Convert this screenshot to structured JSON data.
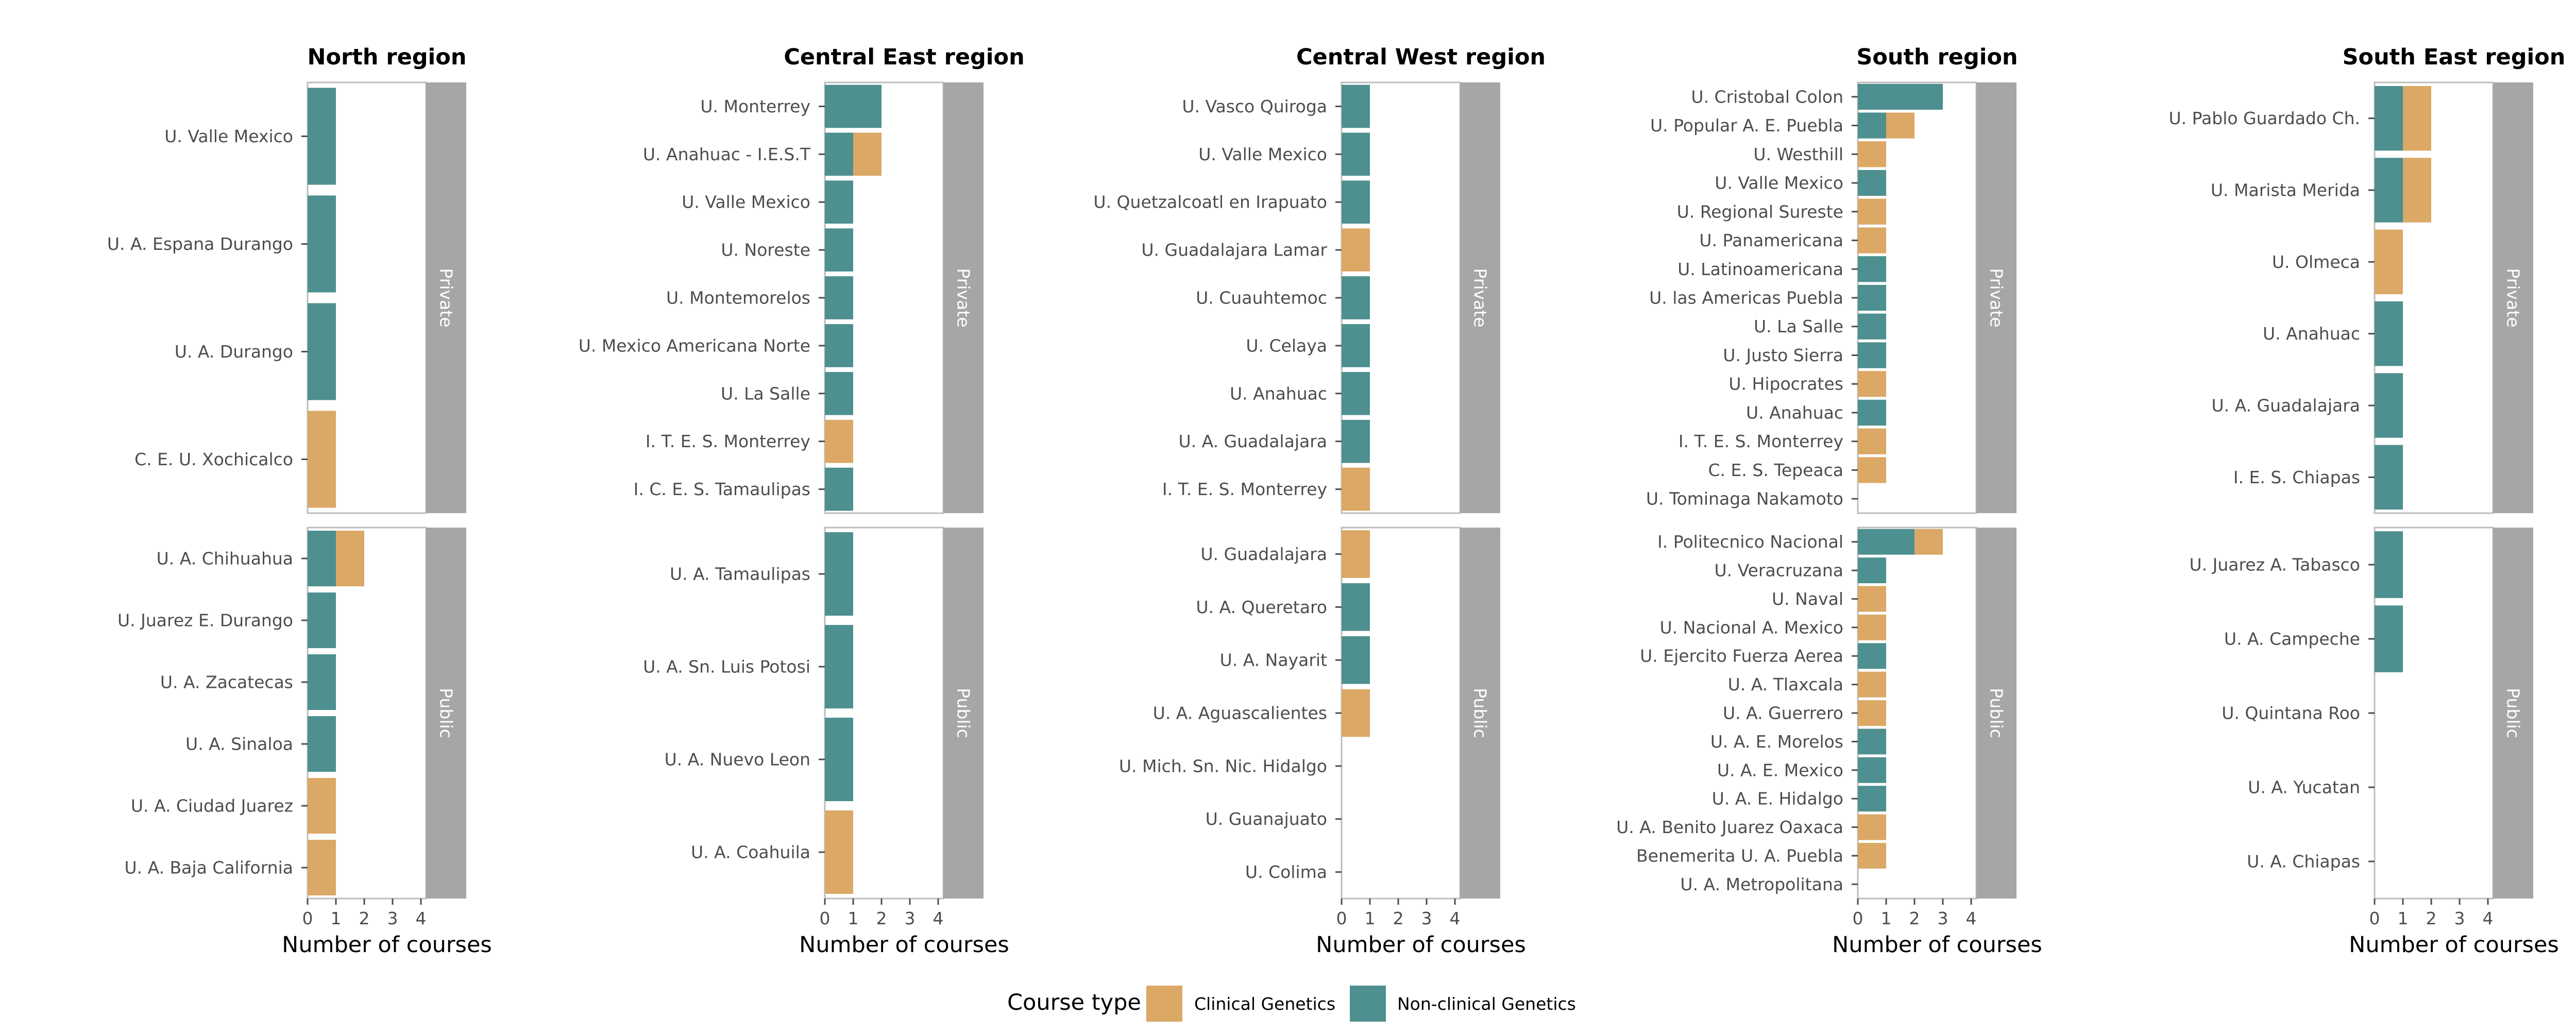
{
  "chart_data": {
    "type": "bar",
    "orientation": "horizontal",
    "stacked": true,
    "xlabel": "Number of courses",
    "xlim": [
      0,
      4
    ],
    "xticks": [
      "0",
      "1",
      "2",
      "3",
      "4"
    ],
    "legend": {
      "title": "Course type",
      "placement": "bottom",
      "entries": [
        "Clinical Genetics",
        "Non-clinical Genetics"
      ]
    },
    "colors": {
      "Clinical Genetics": "#DBA866",
      "Non-clinical Genetics": "#4E8F8F",
      "strip": "#A6A6A6"
    },
    "regions": [
      {
        "title": "North region",
        "facets": [
          {
            "label": "Private",
            "categories": [
              "U. Valle Mexico",
              "U. A. Espana Durango",
              "U. A. Durango",
              "C. E. U. Xochicalco"
            ],
            "series": [
              {
                "name": "Non-clinical Genetics",
                "values": [
                  1,
                  1,
                  1,
                  0
                ]
              },
              {
                "name": "Clinical Genetics",
                "values": [
                  0,
                  0,
                  0,
                  1
                ]
              }
            ]
          },
          {
            "label": "Public",
            "categories": [
              "U. A. Chihuahua",
              "U. Juarez E. Durango",
              "U. A. Zacatecas",
              "U. A. Sinaloa",
              "U. A. Ciudad Juarez",
              "U. A. Baja California"
            ],
            "series": [
              {
                "name": "Non-clinical Genetics",
                "values": [
                  1,
                  1,
                  1,
                  1,
                  0,
                  0
                ]
              },
              {
                "name": "Clinical Genetics",
                "values": [
                  1,
                  0,
                  0,
                  0,
                  1,
                  1
                ]
              }
            ]
          }
        ]
      },
      {
        "title": "Central East region",
        "facets": [
          {
            "label": "Private",
            "categories": [
              "U. Monterrey",
              "U. Anahuac - I.E.S.T",
              "U. Valle Mexico",
              "U. Noreste",
              "U. Montemorelos",
              "U. Mexico Americana Norte",
              "U. La Salle",
              "I. T. E. S. Monterrey",
              "I. C. E. S. Tamaulipas"
            ],
            "series": [
              {
                "name": "Non-clinical Genetics",
                "values": [
                  2,
                  1,
                  1,
                  1,
                  1,
                  1,
                  1,
                  0,
                  1
                ]
              },
              {
                "name": "Clinical Genetics",
                "values": [
                  0,
                  1,
                  0,
                  0,
                  0,
                  0,
                  0,
                  1,
                  0
                ]
              }
            ]
          },
          {
            "label": "Public",
            "categories": [
              "U. A. Tamaulipas",
              "U. A. Sn. Luis Potosi",
              "U. A. Nuevo Leon",
              "U. A. Coahuila"
            ],
            "series": [
              {
                "name": "Non-clinical Genetics",
                "values": [
                  1,
                  1,
                  1,
                  0
                ]
              },
              {
                "name": "Clinical Genetics",
                "values": [
                  0,
                  0,
                  0,
                  1
                ]
              }
            ]
          }
        ]
      },
      {
        "title": "Central West region",
        "facets": [
          {
            "label": "Private",
            "categories": [
              "U. Vasco Quiroga",
              "U. Valle Mexico",
              "U. Quetzalcoatl en Irapuato",
              "U. Guadalajara Lamar",
              "U. Cuauhtemoc",
              "U. Celaya",
              "U. Anahuac",
              "U. A. Guadalajara",
              "I. T. E. S. Monterrey"
            ],
            "series": [
              {
                "name": "Non-clinical Genetics",
                "values": [
                  1,
                  1,
                  1,
                  0,
                  1,
                  1,
                  1,
                  1,
                  0
                ]
              },
              {
                "name": "Clinical Genetics",
                "values": [
                  0,
                  0,
                  0,
                  1,
                  0,
                  0,
                  0,
                  0,
                  1
                ]
              }
            ]
          },
          {
            "label": "Public",
            "categories": [
              "U. Guadalajara",
              "U. A. Queretaro",
              "U. A. Nayarit",
              "U. A. Aguascalientes",
              "U. Mich. Sn. Nic. Hidalgo",
              "U. Guanajuato",
              "U. Colima"
            ],
            "series": [
              {
                "name": "Non-clinical Genetics",
                "values": [
                  0,
                  1,
                  1,
                  0,
                  0,
                  0,
                  0
                ]
              },
              {
                "name": "Clinical Genetics",
                "values": [
                  1,
                  0,
                  0,
                  1,
                  0,
                  0,
                  0
                ]
              }
            ]
          }
        ]
      },
      {
        "title": "South region",
        "facets": [
          {
            "label": "Private",
            "categories": [
              "U. Cristobal Colon",
              "U. Popular A. E. Puebla",
              "U. Westhill",
              "U. Valle Mexico",
              "U. Regional Sureste",
              "U. Panamericana",
              "U. Latinoamericana",
              "U. las Americas Puebla",
              "U. La Salle",
              "U. Justo Sierra",
              "U. Hipocrates",
              "U. Anahuac",
              "I. T. E. S. Monterrey",
              "C. E. S. Tepeaca",
              "U. Tominaga Nakamoto"
            ],
            "series": [
              {
                "name": "Non-clinical Genetics",
                "values": [
                  3,
                  1,
                  0,
                  1,
                  0,
                  0,
                  1,
                  1,
                  1,
                  1,
                  0,
                  1,
                  0,
                  0,
                  0
                ]
              },
              {
                "name": "Clinical Genetics",
                "values": [
                  0,
                  1,
                  1,
                  0,
                  1,
                  1,
                  0,
                  0,
                  0,
                  0,
                  1,
                  0,
                  1,
                  1,
                  0
                ]
              }
            ]
          },
          {
            "label": "Public",
            "categories": [
              "I. Politecnico Nacional",
              "U. Veracruzana",
              "U. Naval",
              "U. Nacional A. Mexico",
              "U. Ejercito Fuerza Aerea",
              "U. A. Tlaxcala",
              "U. A. Guerrero",
              "U. A. E. Morelos",
              "U. A. E. Mexico",
              "U. A. E. Hidalgo",
              "U. A. Benito Juarez Oaxaca",
              "Benemerita U. A. Puebla",
              "U. A. Metropolitana"
            ],
            "series": [
              {
                "name": "Non-clinical Genetics",
                "values": [
                  2,
                  1,
                  0,
                  0,
                  1,
                  0,
                  0,
                  1,
                  1,
                  1,
                  0,
                  0,
                  0
                ]
              },
              {
                "name": "Clinical Genetics",
                "values": [
                  1,
                  0,
                  1,
                  1,
                  0,
                  1,
                  1,
                  0,
                  0,
                  0,
                  1,
                  1,
                  0
                ]
              }
            ]
          }
        ]
      },
      {
        "title": "South East region",
        "facets": [
          {
            "label": "Private",
            "categories": [
              "U. Pablo Guardado Ch.",
              "U. Marista Merida",
              "U. Olmeca",
              "U. Anahuac",
              "U. A. Guadalajara",
              "I. E. S. Chiapas"
            ],
            "series": [
              {
                "name": "Non-clinical Genetics",
                "values": [
                  1,
                  1,
                  0,
                  1,
                  1,
                  1
                ]
              },
              {
                "name": "Clinical Genetics",
                "values": [
                  1,
                  1,
                  1,
                  0,
                  0,
                  0
                ]
              }
            ]
          },
          {
            "label": "Public",
            "categories": [
              "U. Juarez A. Tabasco",
              "U. A. Campeche",
              "U. Quintana Roo",
              "U. A. Yucatan",
              "U. A. Chiapas"
            ],
            "series": [
              {
                "name": "Non-clinical Genetics",
                "values": [
                  1,
                  1,
                  0,
                  0,
                  0
                ]
              },
              {
                "name": "Clinical Genetics",
                "values": [
                  0,
                  0,
                  0,
                  0,
                  0
                ]
              }
            ]
          }
        ]
      }
    ]
  }
}
